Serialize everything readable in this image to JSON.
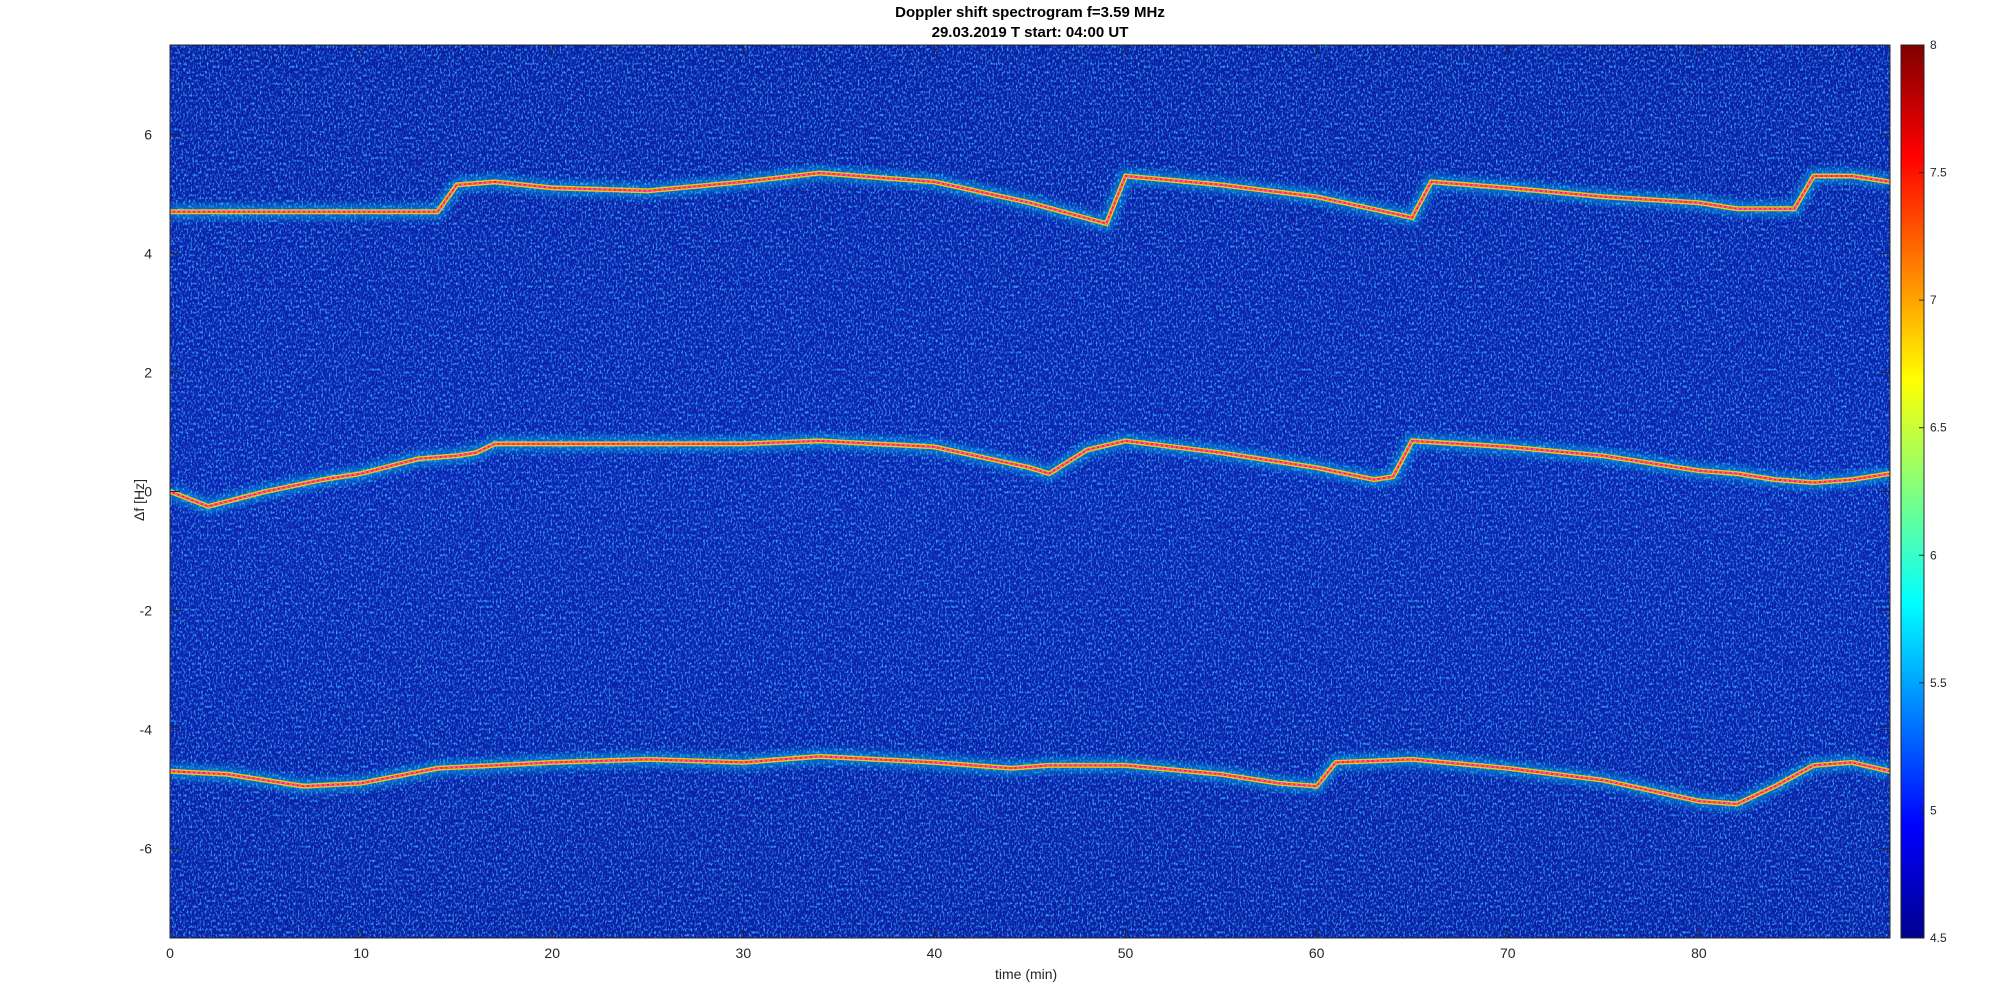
{
  "chart_data": {
    "type": "heatmap",
    "title": "Doppler shift spectrogram f=3.59 MHz",
    "subtitle": "29.03.2019    T start: 04:00 UT",
    "xlabel": "time (min)",
    "ylabel": "Δf [Hz]",
    "xlim": [
      0,
      90
    ],
    "ylim": [
      -7.5,
      7.5
    ],
    "x_ticks": [
      0,
      10,
      20,
      30,
      40,
      50,
      60,
      70,
      80
    ],
    "y_ticks": [
      -6,
      -4,
      -2,
      0,
      2,
      4,
      6
    ],
    "colorbar": {
      "range": [
        4.5,
        8
      ],
      "ticks": [
        4.5,
        5,
        5.5,
        6,
        6.5,
        7,
        7.5,
        8
      ],
      "colormap": "jet"
    },
    "traces": [
      {
        "x": [
          0,
          2,
          5,
          8,
          10,
          13,
          15,
          16,
          17,
          20,
          25,
          30,
          34,
          40,
          45,
          46,
          48,
          50,
          55,
          60,
          63,
          64,
          65,
          70,
          75,
          80,
          82,
          84,
          86,
          88,
          90
        ],
        "y": [
          0.0,
          -0.25,
          0.0,
          0.2,
          0.3,
          0.55,
          0.6,
          0.65,
          0.8,
          0.8,
          0.8,
          0.8,
          0.85,
          0.75,
          0.4,
          0.3,
          0.7,
          0.85,
          0.65,
          0.4,
          0.2,
          0.25,
          0.85,
          0.75,
          0.6,
          0.35,
          0.3,
          0.2,
          0.15,
          0.2,
          0.3
        ]
      },
      {
        "x": [
          0,
          5,
          10,
          14,
          15,
          17,
          20,
          25,
          30,
          34,
          40,
          45,
          49,
          50,
          55,
          60,
          65,
          66,
          70,
          75,
          80,
          82,
          85,
          86,
          88,
          90
        ],
        "y": [
          4.7,
          4.7,
          4.7,
          4.7,
          5.15,
          5.2,
          5.1,
          5.05,
          5.2,
          5.35,
          5.2,
          4.85,
          4.5,
          5.3,
          5.15,
          4.95,
          4.6,
          5.2,
          5.1,
          4.95,
          4.85,
          4.75,
          4.75,
          5.3,
          5.3,
          5.2
        ]
      },
      {
        "x": [
          0,
          3,
          7,
          10,
          14,
          17,
          20,
          25,
          30,
          34,
          40,
          44,
          46,
          50,
          55,
          58,
          60,
          61,
          65,
          70,
          75,
          80,
          82,
          84,
          86,
          88,
          90
        ],
        "y": [
          -4.7,
          -4.75,
          -4.95,
          -4.9,
          -4.65,
          -4.6,
          -4.55,
          -4.5,
          -4.55,
          -4.45,
          -4.55,
          -4.65,
          -4.6,
          -4.6,
          -4.75,
          -4.9,
          -4.95,
          -4.55,
          -4.5,
          -4.65,
          -4.85,
          -5.2,
          -5.25,
          -4.95,
          -4.6,
          -4.55,
          -4.7
        ]
      }
    ]
  }
}
